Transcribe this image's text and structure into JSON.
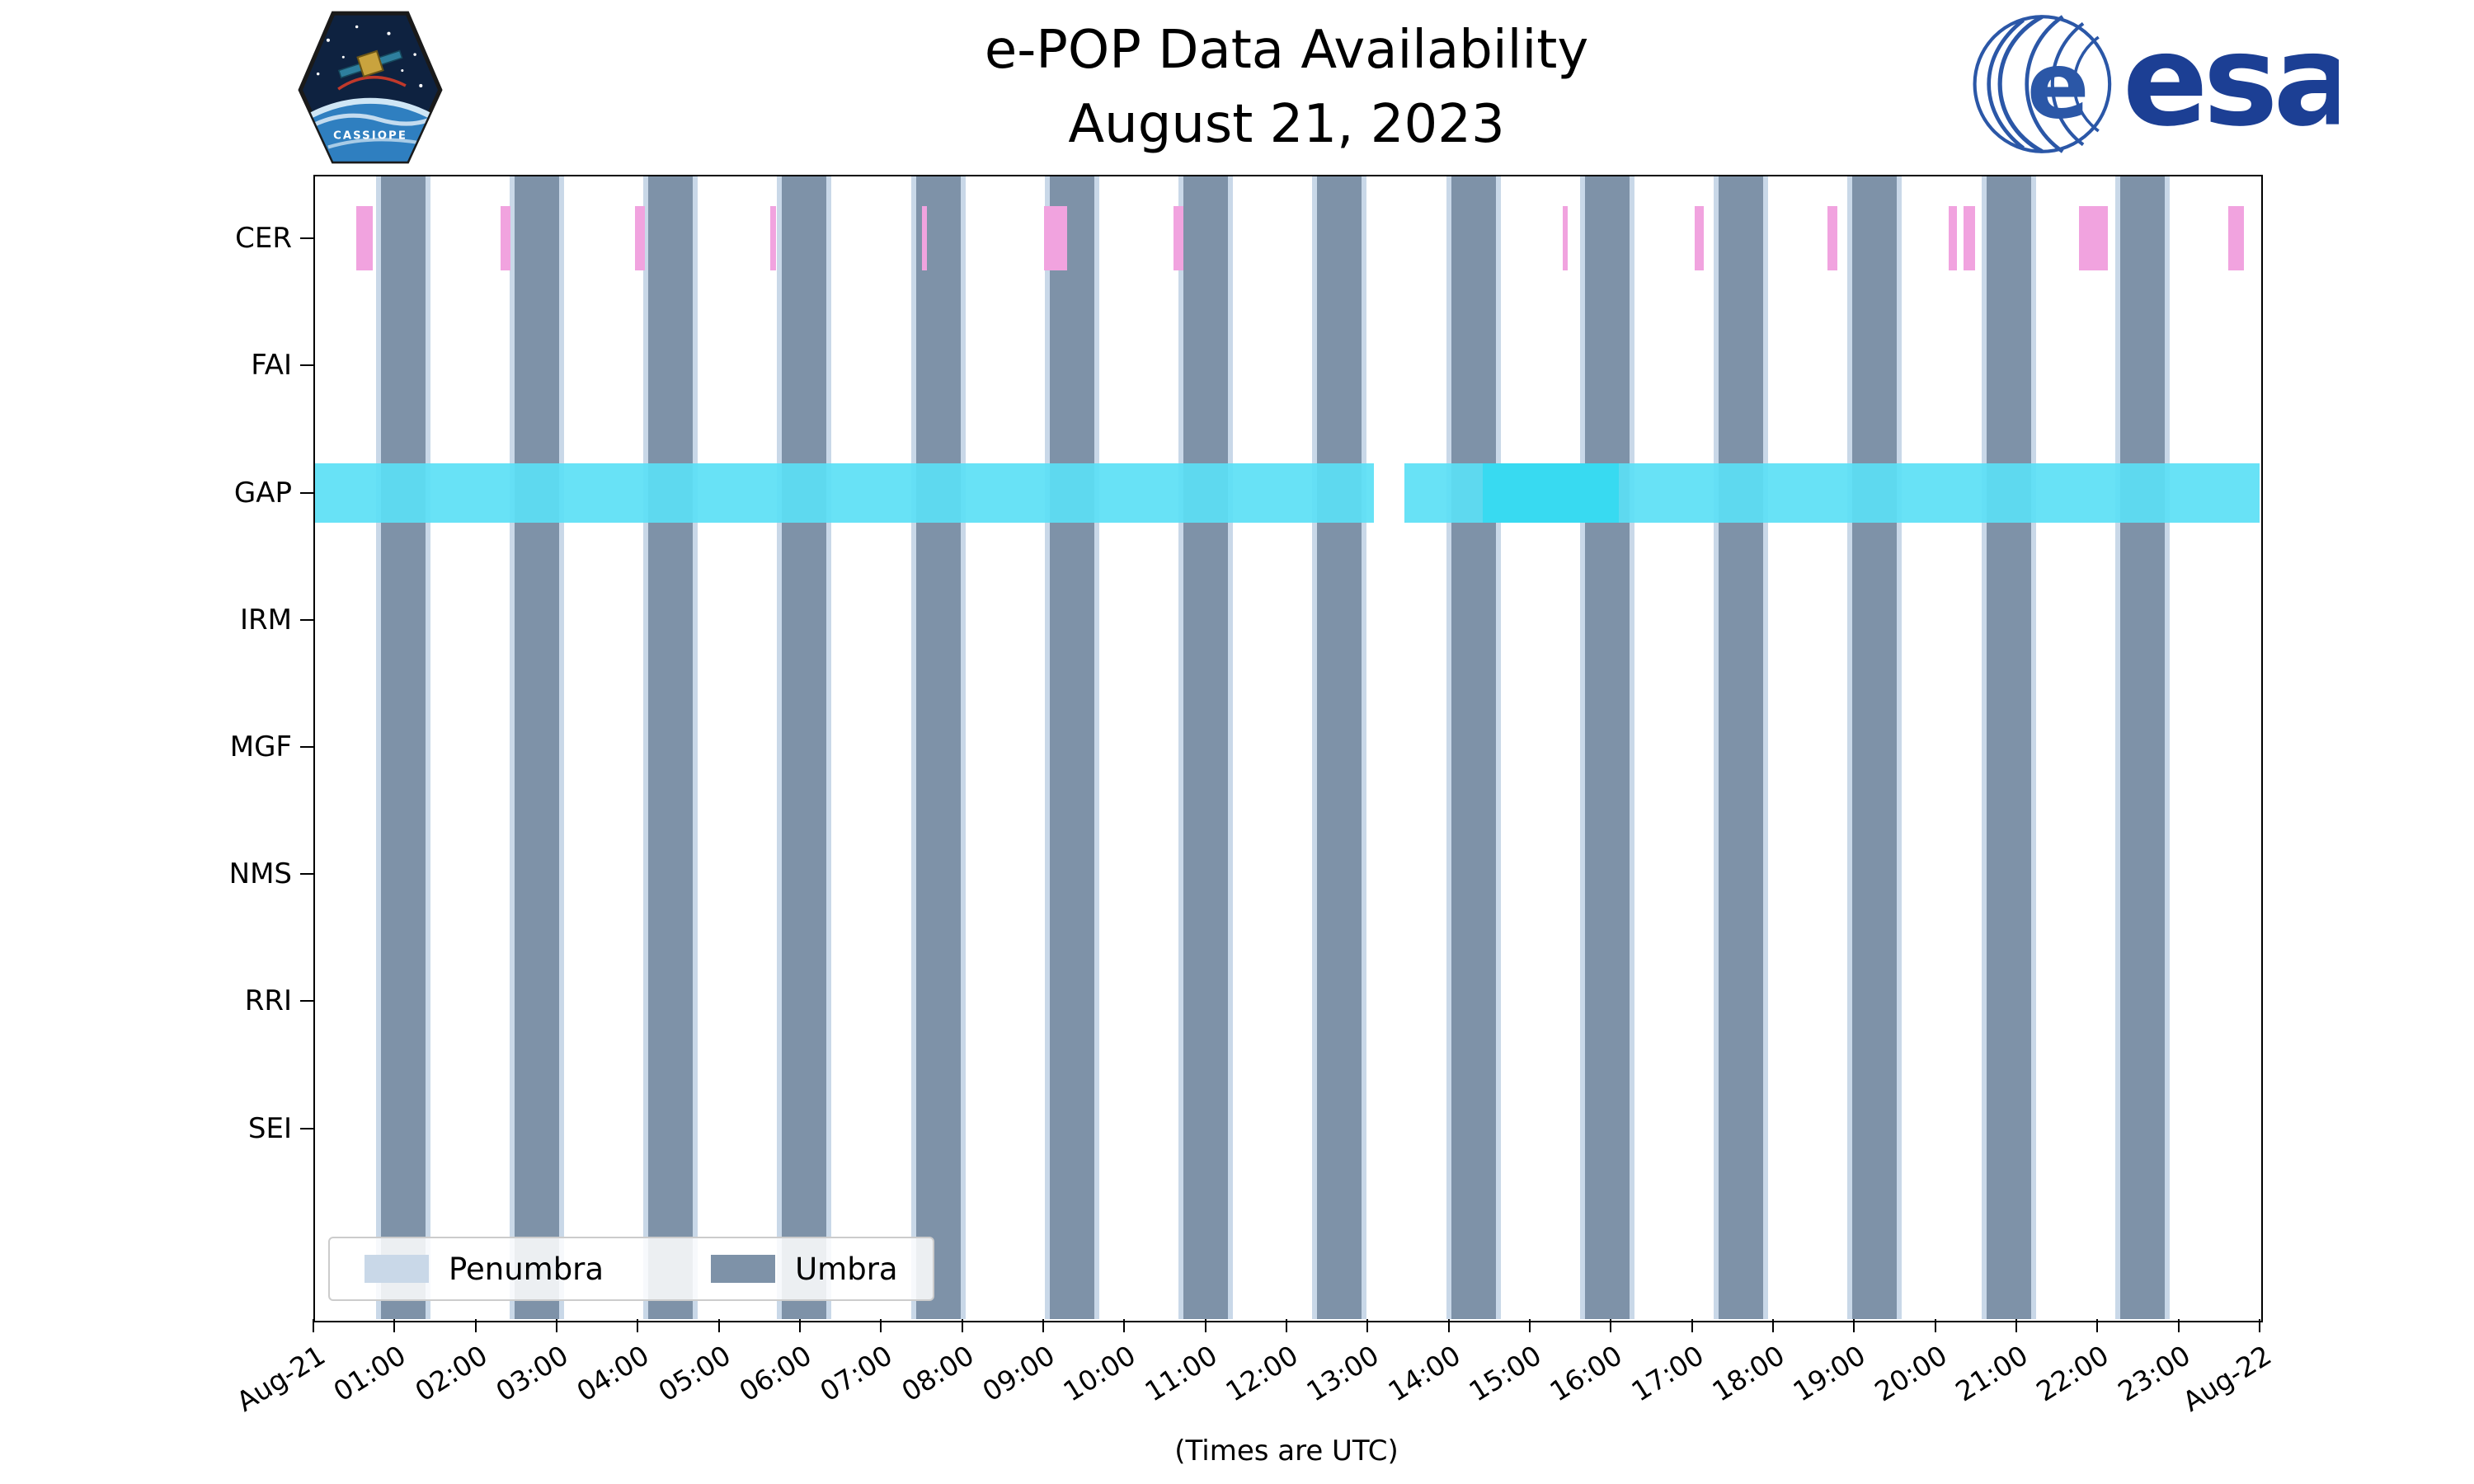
{
  "header": {
    "title_line1": "e-POP Data Availability",
    "title_line2": "August 21, 2023"
  },
  "logos": {
    "cassiope_text": "CASSIOPE",
    "esa_text": "esa"
  },
  "footer": {
    "caption": "(Times are UTC)"
  },
  "chart_data": {
    "type": "timeline",
    "title": "e-POP Data Availability",
    "subtitle": "August 21, 2023",
    "x_axis": {
      "unit": "hours UTC",
      "range": [
        0,
        24
      ],
      "tick_interval_hours": 1,
      "tick_labels": [
        "Aug-21",
        "01:00",
        "02:00",
        "03:00",
        "04:00",
        "05:00",
        "06:00",
        "07:00",
        "08:00",
        "09:00",
        "10:00",
        "11:00",
        "12:00",
        "13:00",
        "14:00",
        "15:00",
        "16:00",
        "17:00",
        "18:00",
        "19:00",
        "20:00",
        "21:00",
        "22:00",
        "23:00",
        "Aug-22"
      ],
      "caption": "(Times are UTC)",
      "label_rotation_deg": 32
    },
    "y_axis": {
      "instruments": [
        "CER",
        "FAI",
        "GAP",
        "IRM",
        "MGF",
        "NMS",
        "RRI",
        "SEI"
      ]
    },
    "shadow_intervals": {
      "umbra_hours": [
        [
          0.83,
          1.38
        ],
        [
          2.48,
          3.03
        ],
        [
          4.13,
          4.68
        ],
        [
          5.78,
          6.33
        ],
        [
          7.43,
          7.98
        ],
        [
          9.08,
          9.63
        ],
        [
          10.73,
          11.28
        ],
        [
          12.38,
          12.93
        ],
        [
          14.03,
          14.58
        ],
        [
          15.68,
          16.23
        ],
        [
          17.33,
          17.88
        ],
        [
          18.98,
          19.53
        ],
        [
          20.63,
          21.18
        ],
        [
          22.28,
          22.83
        ]
      ],
      "penumbra_margin_hours": 0.06
    },
    "availability": {
      "CER": {
        "segments_hours": [
          [
            0.53,
            0.73
          ],
          [
            2.31,
            2.43
          ],
          [
            3.97,
            4.09
          ],
          [
            5.63,
            5.71
          ],
          [
            7.51,
            7.57
          ],
          [
            9.01,
            9.3
          ],
          [
            10.61,
            10.73
          ],
          [
            15.41,
            15.47
          ],
          [
            17.03,
            17.15
          ],
          [
            18.67,
            18.79
          ],
          [
            20.17,
            20.27
          ],
          [
            20.35,
            20.49
          ],
          [
            21.77,
            22.13
          ],
          [
            23.61,
            23.81
          ]
        ]
      },
      "FAI": {
        "segments_hours": []
      },
      "GAP": {
        "segments_hours": [
          [
            0.0,
            13.08
          ],
          [
            13.45,
            24.0
          ]
        ],
        "highlight_segments_hours": [
          [
            14.42,
            16.1
          ]
        ]
      },
      "IRM": {
        "segments_hours": []
      },
      "MGF": {
        "segments_hours": []
      },
      "NMS": {
        "segments_hours": []
      },
      "RRI": {
        "segments_hours": []
      },
      "SEI": {
        "segments_hours": []
      }
    },
    "legend": [
      {
        "label": "Penumbra",
        "color": "#c9d8e8"
      },
      {
        "label": "Umbra",
        "color": "#7e92a8"
      }
    ],
    "colors": {
      "umbra": "#7e92a8",
      "penumbra": "#c9d8e8",
      "gap_band": "#5be0f5",
      "gap_band_highlight": "#38daf1",
      "cer_band": "#f1a3df",
      "esa_blue": "#1c3f94",
      "axis": "#000000",
      "background": "#ffffff"
    }
  }
}
